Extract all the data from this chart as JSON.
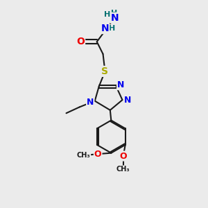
{
  "bg_color": "#ebebeb",
  "atom_colors": {
    "N": "#0000ee",
    "O": "#ee0000",
    "S": "#aaaa00",
    "C": "#1a1a1a",
    "H": "#007070"
  },
  "bond_color": "#1a1a1a",
  "bond_width": 1.5
}
